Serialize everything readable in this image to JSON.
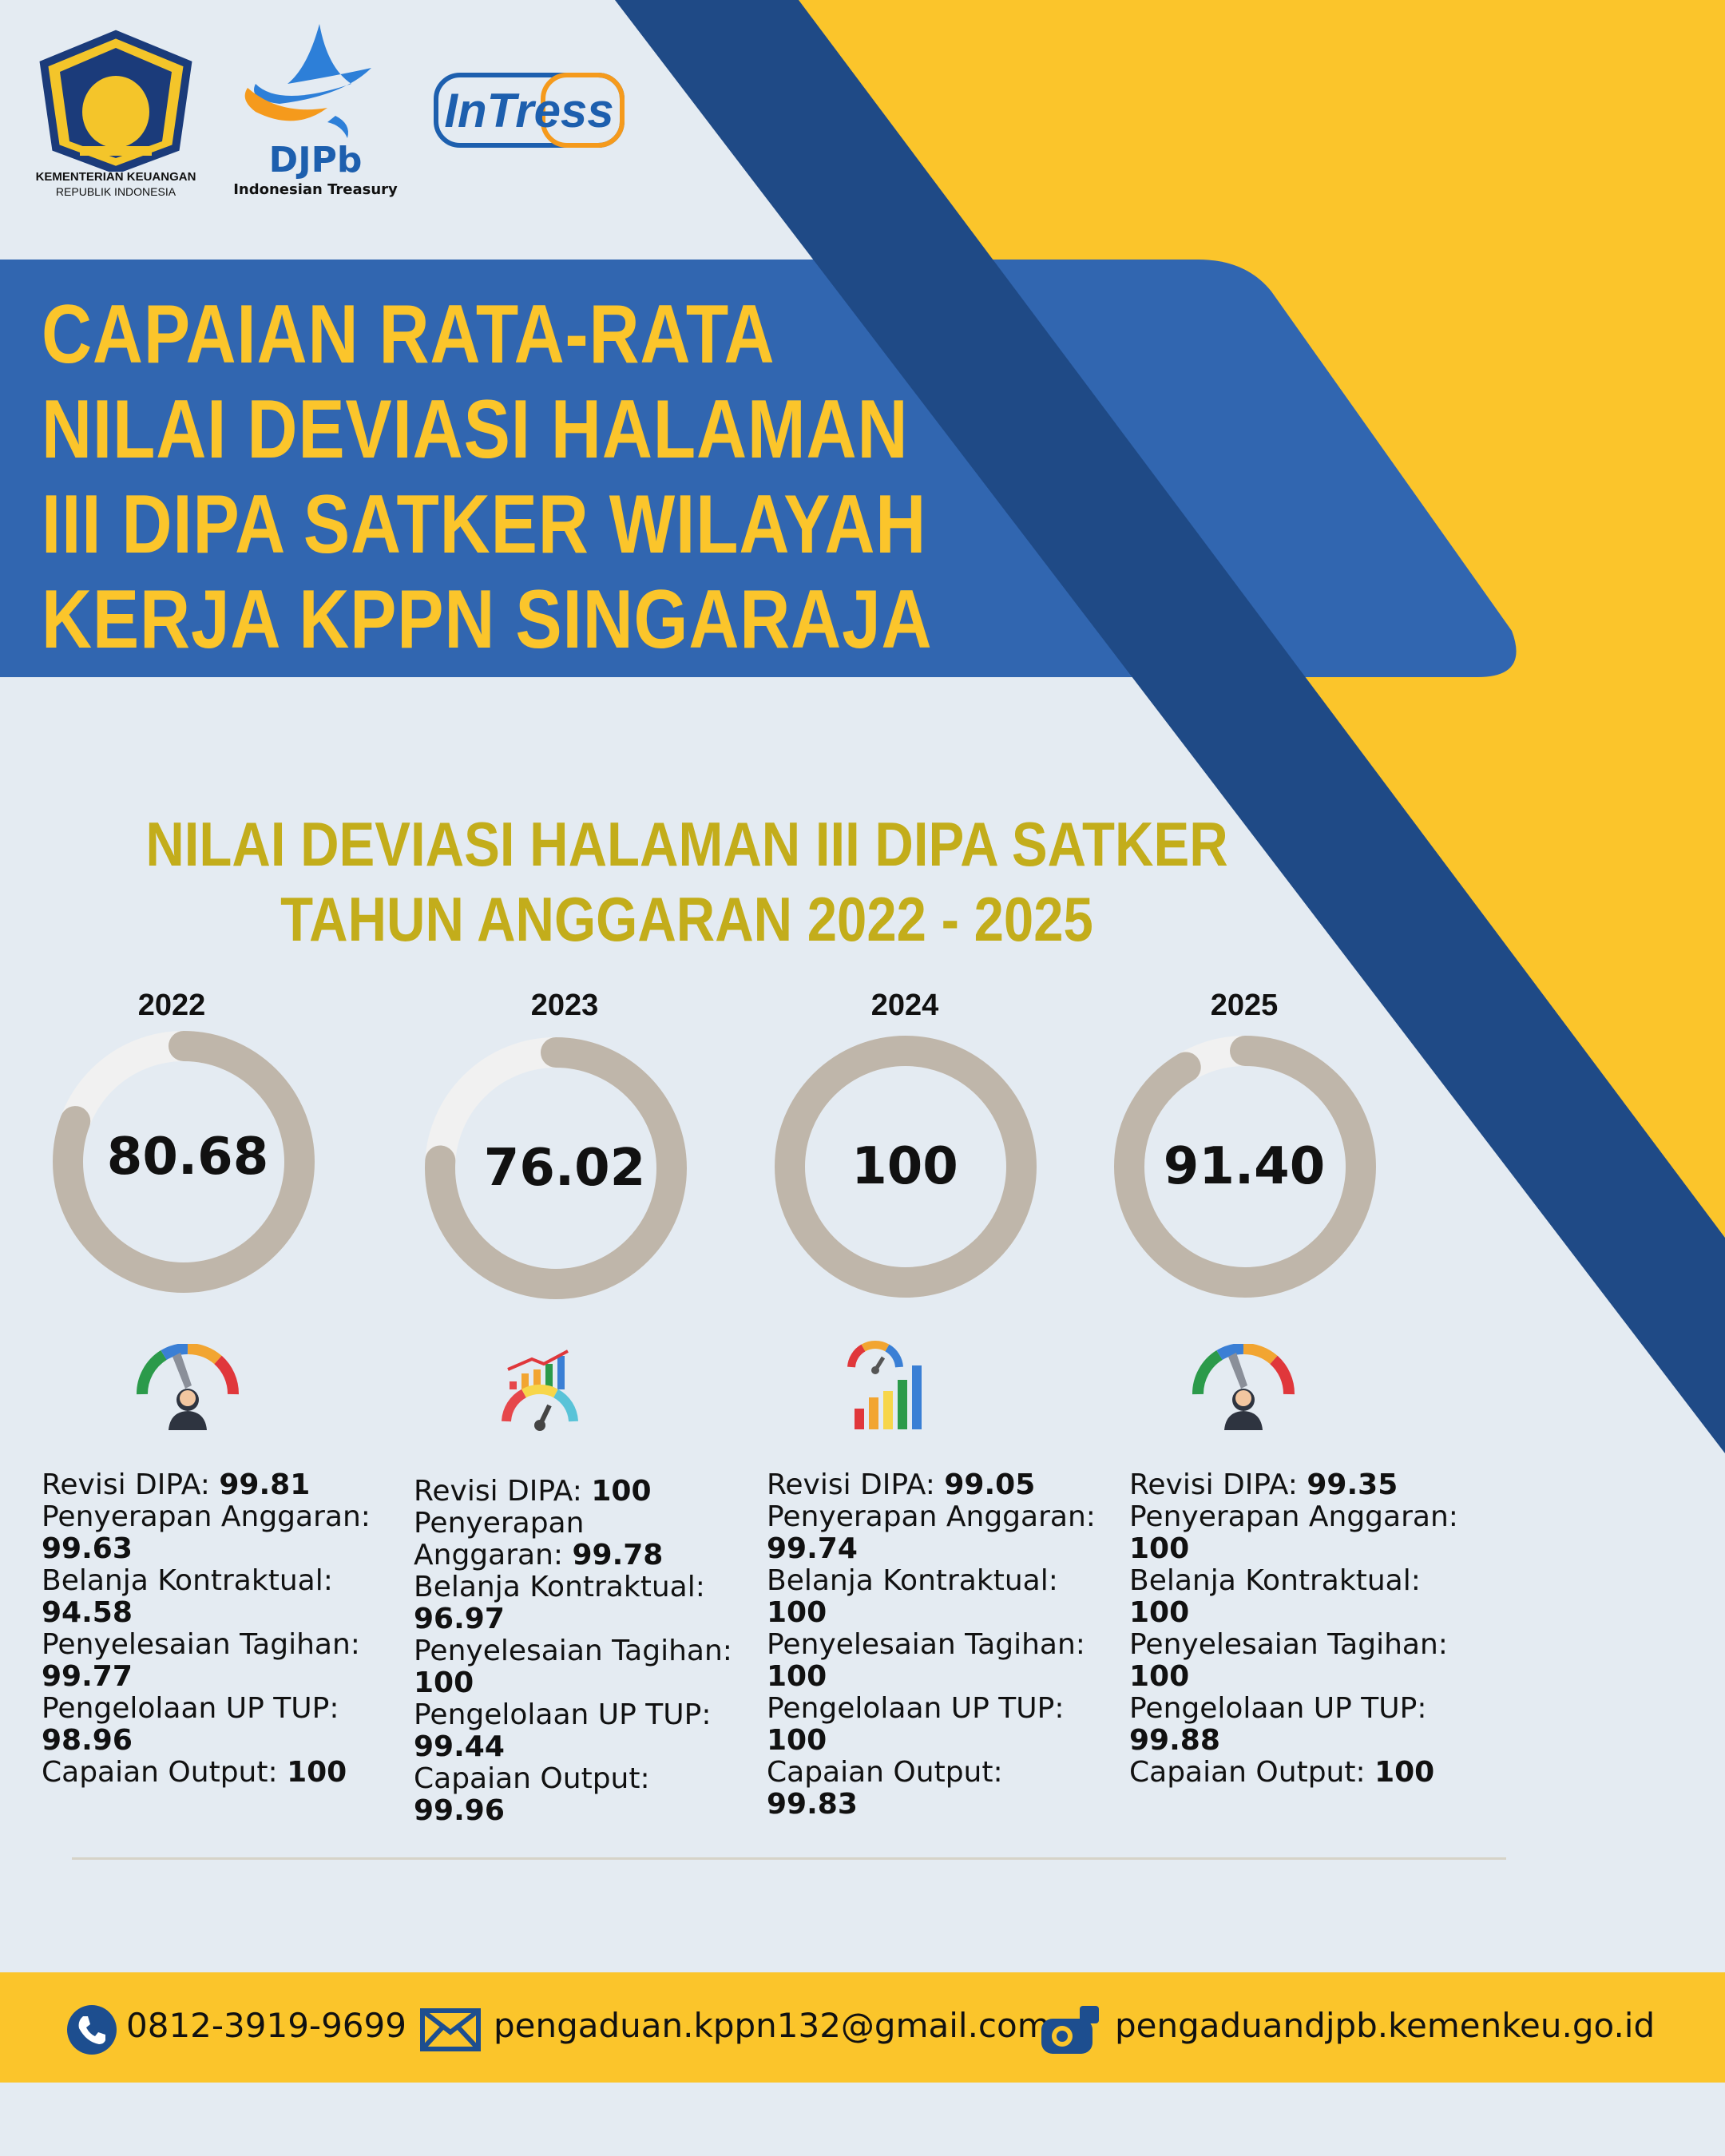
{
  "logos": {
    "kemenkeu_line1": "KEMENTERIAN KEUANGAN",
    "kemenkeu_line2": "REPUBLIK INDONESIA",
    "djpb_name": "DJPb",
    "djpb_sub": "Indonesian Treasury",
    "intress": "InTress"
  },
  "title_lines": [
    "CAPAIAN RATA-RATA",
    "NILAI DEVIASI HALAMAN",
    "III DIPA SATKER WILAYAH",
    "KERJA KPPN SINGARAJA"
  ],
  "subtitle_lines": [
    "NILAI DEVIASI HALAMAN III DIPA SATKER",
    "TAHUN ANGGARAN 2022 - 2025"
  ],
  "colors": {
    "blue_band": "#3166b0",
    "dark_stripe": "#1f4a86",
    "yellow": "#fbc52b",
    "ring_fill": "#bfb6aa",
    "ring_track": "#f1f1f1"
  },
  "chart_data": {
    "type": "donut",
    "categories": [
      "2022",
      "2023",
      "2024",
      "2025"
    ],
    "values": [
      80.68,
      76.02,
      100,
      91.4
    ],
    "value_labels": [
      "80.68",
      "76.02",
      "100",
      "91.40"
    ],
    "max": 100
  },
  "details": [
    {
      "year": "2022",
      "icon": "gauge-person-icon",
      "lines": [
        {
          "label": "Revisi DIPA: ",
          "value": "99.81"
        },
        {
          "label": "Penyerapan Anggaran:",
          "value": "99.63"
        },
        {
          "label": "Belanja Kontraktual:",
          "value": "94.58"
        },
        {
          "label": "Penyelesaian Tagihan:",
          "value": "99.77"
        },
        {
          "label": "Pengelolaan UP TUP:",
          "value": "98.96"
        },
        {
          "label": "Capaian Output: ",
          "value": "100"
        }
      ]
    },
    {
      "year": "2023",
      "icon": "growth-chart-gauge-icon",
      "lines": [
        {
          "label": "Revisi DIPA: ",
          "value": "100"
        },
        {
          "label": "Penyerapan",
          "value": ""
        },
        {
          "label": "Anggaran: ",
          "value": "99.78"
        },
        {
          "label": "Belanja Kontraktual:",
          "value": "96.97"
        },
        {
          "label": "Penyelesaian Tagihan:",
          "value": "100"
        },
        {
          "label": "Pengelolaan UP TUP:",
          "value": "99.44"
        },
        {
          "label": "Capaian Output:",
          "value": "99.96"
        }
      ]
    },
    {
      "year": "2024",
      "icon": "gauge-bar-chart-icon",
      "lines": [
        {
          "label": "Revisi DIPA: ",
          "value": "99.05"
        },
        {
          "label": "Penyerapan Anggaran:",
          "value": "99.74"
        },
        {
          "label": "Belanja Kontraktual:",
          "value": "100"
        },
        {
          "label": "Penyelesaian Tagihan:",
          "value": "100"
        },
        {
          "label": "Pengelolaan UP TUP:",
          "value": "100"
        },
        {
          "label": "Capaian Output:",
          "value": "99.83"
        }
      ]
    },
    {
      "year": "2025",
      "icon": "gauge-person-icon",
      "lines": [
        {
          "label": "Revisi DIPA: ",
          "value": "99.35"
        },
        {
          "label": "Penyerapan Anggaran:",
          "value": "100"
        },
        {
          "label": "Belanja Kontraktual:",
          "value": "100"
        },
        {
          "label": "Penyelesaian Tagihan:",
          "value": "100"
        },
        {
          "label": "Pengelolaan UP TUP:",
          "value": "99.88"
        },
        {
          "label": "Capaian Output: ",
          "value": "100"
        }
      ]
    }
  ],
  "footer": {
    "phone": "0812-3919-9699",
    "email": "pengaduan.kppn132@gmail.com",
    "website": "pengaduandjpb.kemenkeu.go.id"
  }
}
